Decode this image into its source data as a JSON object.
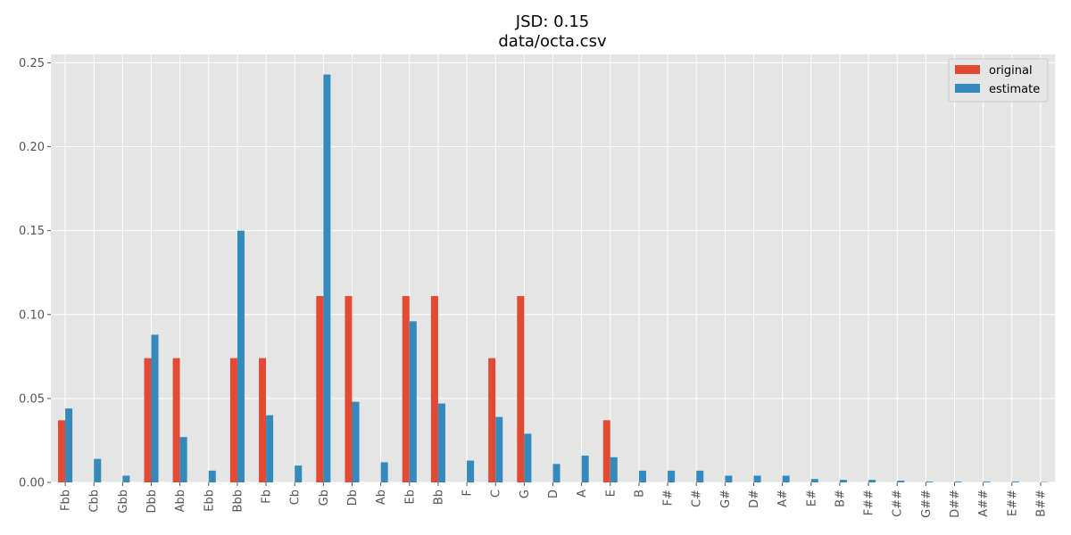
{
  "chart_data": {
    "type": "bar",
    "title": "JSD: 0.15",
    "subtitle": "data/octa.csv",
    "xlabel": "",
    "ylabel": "",
    "ylim": [
      0,
      0.255
    ],
    "yticks": [
      "0.00",
      "0.05",
      "0.10",
      "0.15",
      "0.20",
      "0.25"
    ],
    "grid": true,
    "legend_position": "top-right",
    "categories": [
      "Fbb",
      "Cbb",
      "Gbb",
      "Dbb",
      "Abb",
      "Ebb",
      "Bbb",
      "Fb",
      "Cb",
      "Gb",
      "Db",
      "Ab",
      "Eb",
      "Bb",
      "F",
      "C",
      "G",
      "D",
      "A",
      "E",
      "B",
      "F#",
      "C#",
      "G#",
      "D#",
      "A#",
      "E#",
      "B#",
      "F##",
      "C##",
      "G##",
      "D##",
      "A##",
      "E##",
      "B##"
    ],
    "series": [
      {
        "name": "original",
        "color": "#E24A33",
        "values": [
          0.037,
          0,
          0,
          0.074,
          0.074,
          0,
          0.074,
          0.074,
          0,
          0.111,
          0.111,
          0,
          0.111,
          0.111,
          0,
          0.074,
          0.111,
          0,
          0,
          0.037,
          0,
          0,
          0,
          0,
          0,
          0,
          0,
          0,
          0,
          0,
          0,
          0,
          0,
          0,
          0
        ]
      },
      {
        "name": "estimate",
        "color": "#348ABD",
        "values": [
          0.044,
          0.014,
          0.004,
          0.088,
          0.027,
          0.007,
          0.15,
          0.04,
          0.01,
          0.243,
          0.048,
          0.012,
          0.096,
          0.047,
          0.013,
          0.039,
          0.029,
          0.011,
          0.016,
          0.015,
          0.007,
          0.007,
          0.007,
          0.004,
          0.004,
          0.004,
          0.002,
          0.0015,
          0.0015,
          0.001,
          0.0005,
          0.0005,
          0.0005,
          0.0005,
          0.0002
        ]
      }
    ]
  }
}
